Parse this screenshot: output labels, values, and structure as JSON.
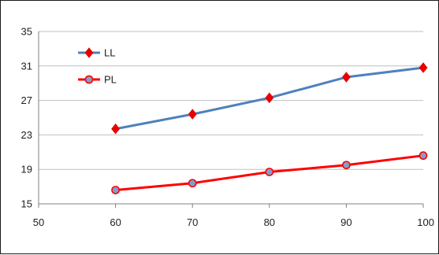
{
  "chart_data": {
    "type": "line",
    "title": "",
    "xlabel": "",
    "ylabel": "",
    "x": [
      60,
      70,
      80,
      90,
      100
    ],
    "xlim": [
      50,
      100
    ],
    "ylim": [
      15,
      35
    ],
    "x_ticks": [
      50,
      60,
      70,
      80,
      90,
      100
    ],
    "y_ticks": [
      15,
      19,
      23,
      27,
      31,
      35
    ],
    "grid": "horizontal",
    "legend_position": "top-left",
    "series": [
      {
        "name": "LL",
        "values": [
          23.7,
          25.4,
          27.3,
          29.7,
          30.8
        ],
        "color": "#4f81bd",
        "marker": "diamond",
        "marker_color": "#e60000"
      },
      {
        "name": "PL",
        "values": [
          16.6,
          17.4,
          18.7,
          19.5,
          20.6
        ],
        "color": "#ff0000",
        "marker": "circle",
        "marker_color": "#7f9fcf"
      }
    ]
  }
}
